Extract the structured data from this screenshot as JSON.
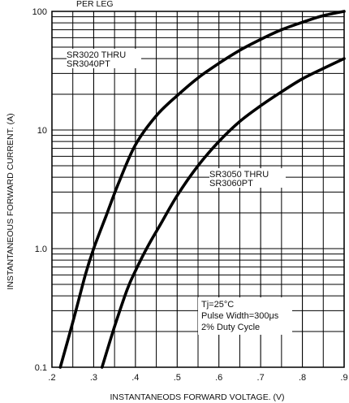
{
  "header_fragment": "PER LEG",
  "chart_data": {
    "type": "line",
    "xlabel": "INSTANTANEODS FORWARD VOLTAGE. (V)",
    "ylabel": "INSTANTANEOUS FORWARD CURRENT. (A)",
    "x_scale": "linear",
    "y_scale": "log",
    "xlim": [
      0.2,
      0.9
    ],
    "ylim": [
      0.1,
      100
    ],
    "x_ticks": [
      ".2",
      ".3",
      ".4",
      ".5",
      ".6",
      ".7",
      ".8",
      ".9"
    ],
    "x_tick_values": [
      0.2,
      0.3,
      0.4,
      0.5,
      0.6,
      0.7,
      0.8,
      0.9
    ],
    "y_ticks": [
      "0.1",
      "1.0",
      "10",
      "100"
    ],
    "y_tick_values": [
      0.1,
      1,
      10,
      100
    ],
    "grid": true,
    "series": [
      {
        "name": "SR3020 THRU SR3040PT",
        "label_lines": [
          "SR3020 THRU",
          "SR3040PT"
        ],
        "x": [
          0.22,
          0.25,
          0.28,
          0.3,
          0.33,
          0.36,
          0.4,
          0.45,
          0.5,
          0.55,
          0.6,
          0.65,
          0.7,
          0.75,
          0.8,
          0.85,
          0.9
        ],
        "y": [
          0.1,
          0.24,
          0.6,
          1.0,
          1.9,
          3.6,
          7.5,
          13.2,
          19.5,
          27.5,
          36.5,
          47.0,
          58.0,
          70.0,
          81.0,
          92.0,
          100.0
        ]
      },
      {
        "name": "SR3050 THRU SR3060PT",
        "label_lines": [
          "SR3050 THRU",
          "SR3060PT"
        ],
        "x": [
          0.32,
          0.35,
          0.38,
          0.4,
          0.43,
          0.46,
          0.5,
          0.55,
          0.6,
          0.65,
          0.7,
          0.75,
          0.8,
          0.85,
          0.9
        ],
        "y": [
          0.1,
          0.22,
          0.45,
          0.65,
          1.05,
          1.6,
          2.8,
          5.0,
          8.0,
          11.8,
          16.0,
          21.0,
          27.0,
          33.0,
          40.0
        ]
      }
    ],
    "annotations": [
      "Tj=25°C",
      "Pulse Width=300μs",
      "2% Duty Cycle"
    ]
  }
}
